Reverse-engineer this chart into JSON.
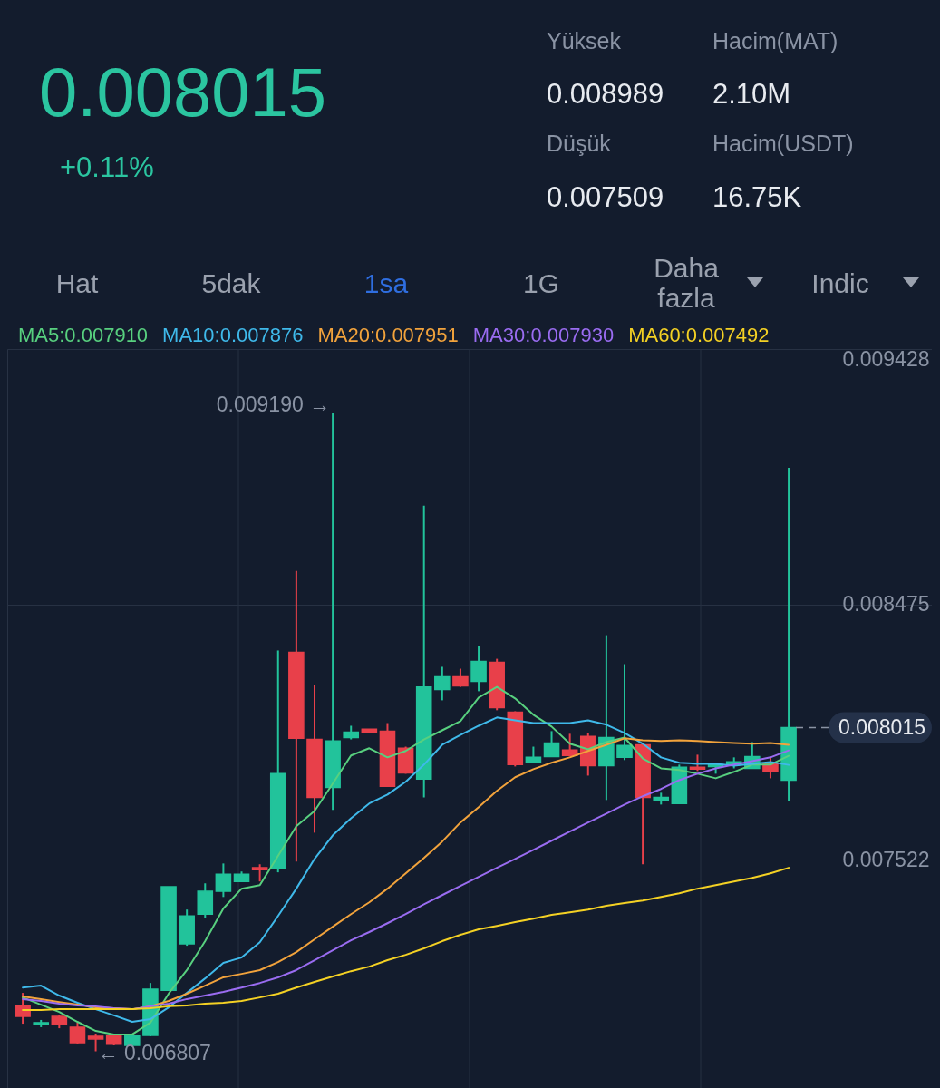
{
  "chart_data": {
    "type": "candlestick",
    "title": "0.008015",
    "subtitle": "+0.11%",
    "annotations": [
      "Yüksek",
      "0.008989",
      "Hacim(MAT)",
      "2.10M",
      "Düşük",
      "0.007509",
      "Hacim(USDT)",
      "16.75K",
      "Hat",
      "5dak",
      "1sa",
      "1G",
      "Daha fazla",
      "Indic",
      "0.009190 →",
      "← 0.006807"
    ],
    "categories": [
      null,
      null,
      null,
      null,
      null,
      null,
      null,
      null,
      null,
      null,
      null,
      null,
      null,
      null,
      null,
      null,
      null,
      null,
      null,
      null,
      null,
      null,
      null,
      null,
      null,
      null,
      null,
      null,
      null,
      null,
      null,
      null,
      null,
      null,
      null,
      null,
      null,
      null,
      null,
      null,
      null,
      null,
      null,
      null,
      null,
      null,
      null,
      null,
      null,
      null
    ],
    "ohlc": [
      [
        0.006978,
        0.007025,
        0.00691,
        0.006937
      ],
      [
        0.006907,
        0.006924,
        0.006897,
        0.006914
      ],
      [
        0.006937,
        0.006941,
        0.006893,
        0.006907
      ],
      [
        0.006897,
        0.006914,
        0.006836,
        0.006839
      ],
      [
        0.006863,
        0.006873,
        0.006807,
        0.006853
      ],
      [
        0.006866,
        0.00687,
        0.006829,
        0.006833
      ],
      [
        0.006829,
        0.006866,
        0.006826,
        0.006866
      ],
      [
        0.006866,
        0.007062,
        0.006863,
        0.007039
      ],
      [
        0.007035,
        0.007421,
        0.007035,
        0.007421
      ],
      [
        0.007208,
        0.007336,
        0.007201,
        0.007312
      ],
      [
        0.007319,
        0.007434,
        0.007306,
        0.007404
      ],
      [
        0.007404,
        0.007508,
        0.007383,
        0.007468
      ],
      [
        0.007441,
        0.007478,
        0.007441,
        0.007468
      ],
      [
        0.007492,
        0.007505,
        0.007441,
        0.007485
      ],
      [
        0.007488,
        0.008303,
        0.007475,
        0.007843
      ],
      [
        0.008296,
        0.0086,
        0.007515,
        0.007975
      ],
      [
        0.007971,
        0.008174,
        0.007623,
        0.007755
      ],
      [
        0.007792,
        0.00919,
        0.007708,
        0.007965
      ],
      [
        0.007978,
        0.008022,
        0.007971,
        0.007998
      ],
      [
        0.008009,
        0.008009,
        0.007998,
        0.007998
      ],
      [
        0.008002,
        0.008032,
        0.007796,
        0.007796
      ],
      [
        0.007938,
        0.007944,
        0.007843,
        0.007846
      ],
      [
        0.007823,
        0.008843,
        0.007755,
        0.008167
      ],
      [
        0.008157,
        0.008242,
        0.008117,
        0.008205
      ],
      [
        0.008205,
        0.008235,
        0.008167,
        0.008171
      ],
      [
        0.008188,
        0.00832,
        0.008151,
        0.008262
      ],
      [
        0.008259,
        0.008272,
        0.00808,
        0.00809
      ],
      [
        0.008073,
        0.008076,
        0.00787,
        0.007877
      ],
      [
        0.007884,
        0.007944,
        0.007884,
        0.007904
      ],
      [
        0.007907,
        0.008002,
        0.007907,
        0.007958
      ],
      [
        0.007931,
        0.007992,
        0.007907,
        0.007911
      ],
      [
        0.007982,
        0.007995,
        0.007836,
        0.007873
      ],
      [
        0.007873,
        0.00836,
        0.007745,
        0.007978
      ],
      [
        0.007904,
        0.008252,
        0.007894,
        0.007948
      ],
      [
        0.007951,
        0.007951,
        0.007505,
        0.007755
      ],
      [
        0.007745,
        0.007772,
        0.007728,
        0.007755
      ],
      [
        0.007732,
        0.007877,
        0.007732,
        0.007867
      ],
      [
        0.007867,
        0.007914,
        0.007853,
        0.00786
      ],
      [
        0.00787,
        0.00788,
        0.007843,
        0.007877
      ],
      [
        0.00788,
        0.007904,
        0.007863,
        0.007887
      ],
      [
        0.007863,
        0.007961,
        0.007863,
        0.007907
      ],
      [
        0.00788,
        0.007904,
        0.007826,
        0.007853
      ],
      [
        0.007819,
        0.008985,
        0.007742,
        0.008015
      ],
      null,
      null,
      null,
      null,
      null,
      null,
      null
    ],
    "colors": [
      "#e8404a",
      "#22c39b",
      "#e8404a",
      "#e8404a",
      "#e8404a",
      "#e8404a",
      "#22c39b",
      "#22c39b",
      "#22c39b",
      "#22c39b",
      "#22c39b",
      "#22c39b",
      "#22c39b",
      "#e8404a",
      "#22c39b",
      "#e8404a",
      "#e8404a",
      "#22c39b",
      "#22c39b",
      "#e8404a",
      "#e8404a",
      "#e8404a",
      "#22c39b",
      "#22c39b",
      "#e8404a",
      "#22c39b",
      "#e8404a",
      "#e8404a",
      "#22c39b",
      "#22c39b",
      "#e8404a",
      "#e8404a",
      "#22c39b",
      "#22c39b",
      "#e8404a",
      "#22c39b",
      "#22c39b",
      "#e8404a",
      "#22c39b",
      "#22c39b",
      "#22c39b",
      "#e8404a",
      "#22c39b",
      null,
      null,
      null,
      null,
      null,
      null,
      null
    ],
    "series": [
      {
        "name": "MA5:0.007910",
        "type": "line",
        "color": "#58d07f",
        "values": [
          0.007008,
          0.006981,
          0.006954,
          0.006917,
          0.006883,
          0.00687,
          0.00687,
          0.006914,
          0.007022,
          0.00711,
          0.007218,
          0.00734,
          0.007414,
          0.007427,
          0.007536,
          0.007647,
          0.007704,
          0.007806,
          0.007911,
          0.007938,
          0.007904,
          0.007928,
          0.007971,
          0.008005,
          0.008039,
          0.008127,
          0.008167,
          0.008124,
          0.008063,
          0.008019,
          0.007955,
          0.007934,
          0.007961,
          0.007978,
          0.0079,
          0.007863,
          0.007857,
          0.007843,
          0.007826,
          0.00785,
          0.007877,
          0.007877,
          0.00791,
          null,
          null,
          null,
          null,
          null,
          null,
          null
        ]
      },
      {
        "name": "MA10:0.007876",
        "type": "line",
        "color": "#3fb9ea",
        "values": [
          0.007045,
          0.007052,
          0.007015,
          0.006988,
          0.006964,
          0.006941,
          0.006917,
          0.006927,
          0.006971,
          0.007025,
          0.007079,
          0.007137,
          0.007157,
          0.007214,
          0.007312,
          0.007414,
          0.007525,
          0.007613,
          0.007677,
          0.007732,
          0.007765,
          0.007813,
          0.007877,
          0.007951,
          0.007988,
          0.008022,
          0.008053,
          0.008042,
          0.008032,
          0.008032,
          0.008032,
          0.008042,
          0.008026,
          0.007995,
          0.007955,
          0.007904,
          0.007884,
          0.00788,
          0.00788,
          0.007873,
          0.00788,
          0.007887,
          0.007876,
          null,
          null,
          null,
          null,
          null,
          null,
          null
        ]
      },
      {
        "name": "MA20:0.007951",
        "type": "line",
        "color": "#f2a33c",
        "values": [
          0.007012,
          0.007002,
          0.006991,
          0.006981,
          0.006971,
          0.006968,
          0.006964,
          0.006975,
          0.006995,
          0.007022,
          0.007052,
          0.007083,
          0.007096,
          0.00711,
          0.00714,
          0.007177,
          0.007225,
          0.007272,
          0.007319,
          0.007363,
          0.007414,
          0.007471,
          0.007529,
          0.00759,
          0.007661,
          0.007718,
          0.007779,
          0.00783,
          0.00786,
          0.007884,
          0.007904,
          0.007928,
          0.007951,
          0.007975,
          0.007968,
          0.007965,
          0.007968,
          0.007965,
          0.007961,
          0.007958,
          0.007955,
          0.007958,
          0.007951,
          null,
          null,
          null,
          null,
          null,
          null,
          null
        ]
      },
      {
        "name": "MA30:0.007930",
        "type": "line",
        "color": "#9a6cf1",
        "values": [
          0.007002,
          0.006995,
          0.006985,
          0.006978,
          0.006975,
          0.006968,
          0.006964,
          0.006975,
          0.006985,
          0.007002,
          0.007015,
          0.007029,
          0.007045,
          0.007062,
          0.007083,
          0.00711,
          0.007147,
          0.007184,
          0.007221,
          0.007252,
          0.007285,
          0.007319,
          0.007356,
          0.00739,
          0.007424,
          0.007458,
          0.007492,
          0.007525,
          0.007559,
          0.007593,
          0.007627,
          0.007661,
          0.007694,
          0.007728,
          0.007759,
          0.007786,
          0.007819,
          0.007843,
          0.007863,
          0.007877,
          0.00789,
          0.007904,
          0.00793,
          null,
          null,
          null,
          null,
          null,
          null,
          null
        ]
      },
      {
        "name": "MA60:0.007492",
        "type": "line",
        "color": "#f4d124",
        "values": [
          0.006961,
          0.006961,
          0.006964,
          0.006964,
          0.006964,
          0.006964,
          0.006964,
          0.006968,
          0.006975,
          0.006978,
          0.006985,
          0.006988,
          0.006995,
          0.007008,
          0.007022,
          0.007045,
          0.007066,
          0.007086,
          0.007106,
          0.007123,
          0.007147,
          0.007167,
          0.007191,
          0.007218,
          0.007242,
          0.007262,
          0.007275,
          0.007289,
          0.007302,
          0.007316,
          0.007326,
          0.007336,
          0.00735,
          0.00736,
          0.00737,
          0.007383,
          0.007397,
          0.007414,
          0.007427,
          0.007441,
          0.007454,
          0.007471,
          0.007492,
          null,
          null,
          null,
          null,
          null,
          null,
          null
        ]
      }
    ],
    "ylim": [
      0.00667,
      0.009428
    ],
    "yticks": [
      0.007522,
      0.008475,
      0.009428
    ],
    "grid": true,
    "legend": "top left",
    "tick_labels": "y",
    "ref_lines": [
      {
        "axis": "y",
        "value": 0.008015,
        "label": "0.008015",
        "line_style": "dashed"
      }
    ]
  }
}
